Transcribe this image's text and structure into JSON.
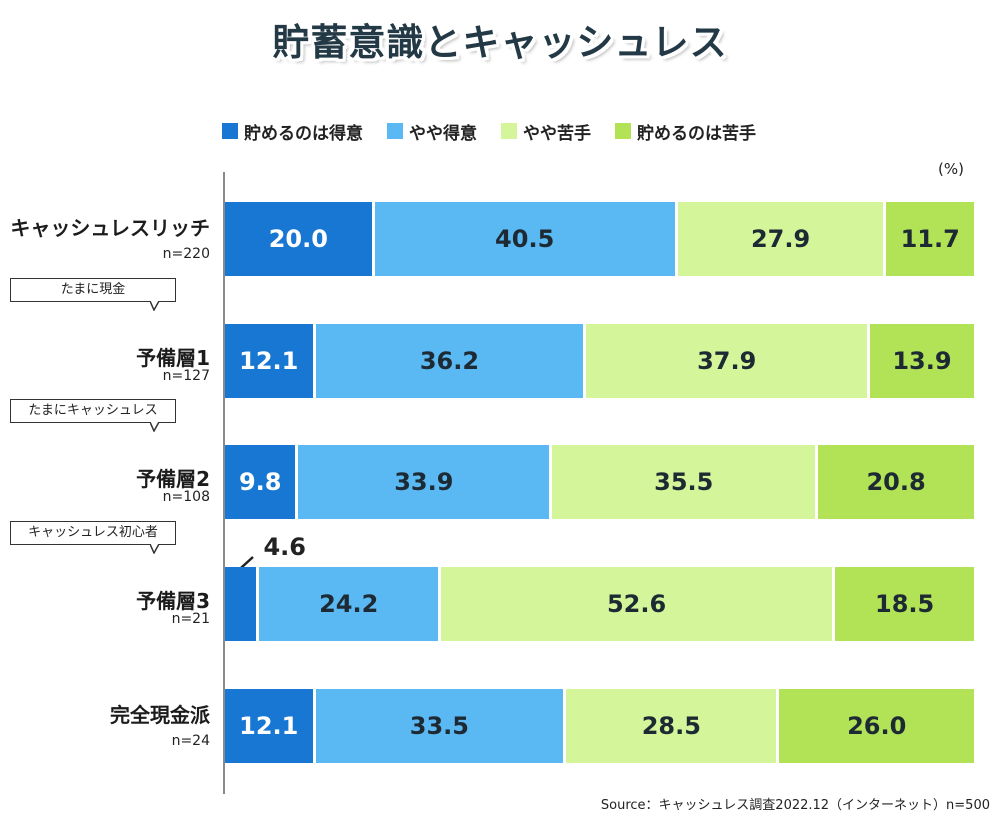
{
  "chart_data": {
    "type": "stacked-bar",
    "title": "貯蓄意識とキャッシュレス",
    "unit": "(%)",
    "orientation": "horizontal",
    "series": [
      {
        "name": "貯めるのは得意",
        "color": "#1777d3",
        "text_color": "#ffffff"
      },
      {
        "name": "やや得意",
        "color": "#5ab8f3",
        "text_color": "#1e2a33"
      },
      {
        "name": "やや苦手",
        "color": "#d4f59a",
        "text_color": "#1e2a33"
      },
      {
        "name": "貯めるのは苦手",
        "color": "#b2e256",
        "text_color": "#1e2a33"
      }
    ],
    "rows": [
      {
        "label": "キャッシュレスリッチ",
        "n": "n=220",
        "callout": "",
        "values": [
          20.0,
          40.5,
          27.9,
          11.7
        ],
        "labels": [
          "20.0",
          "40.5",
          "27.9",
          "11.7"
        ]
      },
      {
        "label": "予備層1",
        "n": "n=127",
        "callout": "たまに現金",
        "values": [
          12.1,
          36.2,
          37.9,
          13.9
        ],
        "labels": [
          "12.1",
          "36.2",
          "37.9",
          "13.9"
        ]
      },
      {
        "label": "予備層2",
        "n": "n=108",
        "callout": "たまにキャッシュレス",
        "values": [
          9.8,
          33.9,
          35.5,
          20.8
        ],
        "labels": [
          "9.8",
          "33.9",
          "35.5",
          "20.8"
        ]
      },
      {
        "label": "予備層3",
        "n": "n=21",
        "callout": "キャッシュレス初心者",
        "values": [
          4.6,
          24.2,
          52.6,
          18.5
        ],
        "labels": [
          "4.6",
          "24.2",
          "52.6",
          "18.5"
        ]
      },
      {
        "label": "完全現金派",
        "n": "n=24",
        "callout": "",
        "values": [
          12.1,
          33.5,
          28.5,
          26.0
        ],
        "labels": [
          "12.1",
          "33.5",
          "28.5",
          "26.0"
        ]
      }
    ],
    "source": "Source：キャッシュレス調査2022.12（インターネット）n=500"
  }
}
